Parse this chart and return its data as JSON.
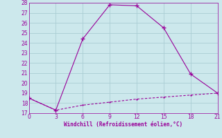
{
  "line1_x": [
    0,
    3,
    6,
    9,
    12,
    15,
    18,
    21
  ],
  "line1_y": [
    18.5,
    17.3,
    24.4,
    27.8,
    27.7,
    25.5,
    20.9,
    19.0
  ],
  "line2_x": [
    0,
    3,
    6,
    9,
    12,
    15,
    18,
    21
  ],
  "line2_y": [
    18.5,
    17.3,
    17.8,
    18.1,
    18.4,
    18.6,
    18.8,
    19.0
  ],
  "color": "#990099",
  "xlabel": "Windchill (Refroidissement éolien,°C)",
  "xlim": [
    0,
    21
  ],
  "ylim": [
    17,
    28
  ],
  "yticks": [
    17,
    18,
    19,
    20,
    21,
    22,
    23,
    24,
    25,
    26,
    27,
    28
  ],
  "xticks": [
    0,
    3,
    6,
    9,
    12,
    15,
    18,
    21
  ],
  "bg_color": "#cce8ec",
  "grid_color": "#aacdd4"
}
